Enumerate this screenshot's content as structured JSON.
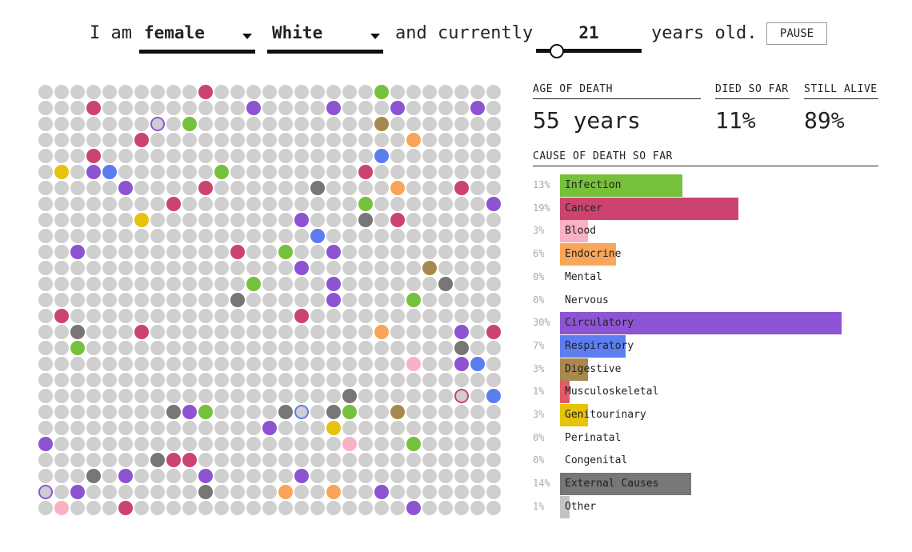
{
  "header": {
    "prefix": "I am",
    "sex_select": {
      "value": "female"
    },
    "race_select": {
      "value": "White"
    },
    "middle": "and currently",
    "age": {
      "value": "21",
      "slider_fraction": 0.2
    },
    "suffix": "years old.",
    "pause_label": "PAUSE"
  },
  "stats": {
    "age_of_death_label": "AGE OF DEATH",
    "age_of_death_value": "55 years",
    "died_label": "DIED SO FAR",
    "died_value": "11%",
    "alive_label": "STILL ALIVE",
    "alive_value": "89%"
  },
  "causes_title": "CAUSE OF DEATH SO FAR",
  "causes": [
    {
      "pct": "13%",
      "value": 13,
      "label": "Infection",
      "color": "#76c03c"
    },
    {
      "pct": "19%",
      "value": 19,
      "label": "Cancer",
      "color": "#cc4370"
    },
    {
      "pct": "3%",
      "value": 3,
      "label": "Blood",
      "color": "#f9b1c4"
    },
    {
      "pct": "6%",
      "value": 6,
      "label": "Endocrine",
      "color": "#f9a65a"
    },
    {
      "pct": "0%",
      "value": 0,
      "label": "Mental",
      "color": "#cccccc"
    },
    {
      "pct": "0%",
      "value": 0,
      "label": "Nervous",
      "color": "#cccccc"
    },
    {
      "pct": "30%",
      "value": 30,
      "label": "Circulatory",
      "color": "#8d55d4"
    },
    {
      "pct": "7%",
      "value": 7,
      "label": "Respiratory",
      "color": "#5c7ef0"
    },
    {
      "pct": "3%",
      "value": 3,
      "label": "Digestive",
      "color": "#a8884c"
    },
    {
      "pct": "1%",
      "value": 1,
      "label": "Musculoskeletal",
      "color": "#e05c6c"
    },
    {
      "pct": "3%",
      "value": 3,
      "label": "Genitourinary",
      "color": "#e6c40c"
    },
    {
      "pct": "0%",
      "value": 0,
      "label": "Perinatal",
      "color": "#cccccc"
    },
    {
      "pct": "0%",
      "value": 0,
      "label": "Congenital",
      "color": "#cccccc"
    },
    {
      "pct": "14%",
      "value": 14,
      "label": "External Causes",
      "color": "#777777"
    },
    {
      "pct": "1%",
      "value": 1,
      "label": "Other",
      "color": "#c4c4c4"
    }
  ],
  "grid": {
    "cols": 29,
    "rows": 27,
    "empty_color": "#cfcfcf",
    "palette": {
      "I": "#76c03c",
      "C": "#cc4370",
      "B": "#f9b1c4",
      "E": "#f9a65a",
      "R": "#8d55d4",
      "S": "#5c7ef0",
      "D": "#a8884c",
      "M": "#e05c6c",
      "G": "#e6c40c",
      "X": "#777777"
    },
    "colored": [
      [
        0,
        10,
        "C"
      ],
      [
        0,
        21,
        "I"
      ],
      [
        1,
        3,
        "C"
      ],
      [
        1,
        13,
        "R"
      ],
      [
        1,
        18,
        "R"
      ],
      [
        1,
        22,
        "R"
      ],
      [
        1,
        27,
        "R"
      ],
      [
        2,
        7,
        "R",
        "ring"
      ],
      [
        2,
        9,
        "I"
      ],
      [
        2,
        21,
        "D"
      ],
      [
        3,
        6,
        "C"
      ],
      [
        3,
        23,
        "E"
      ],
      [
        4,
        3,
        "C"
      ],
      [
        4,
        21,
        "S"
      ],
      [
        5,
        1,
        "G"
      ],
      [
        5,
        3,
        "R"
      ],
      [
        5,
        4,
        "S"
      ],
      [
        5,
        11,
        "I"
      ],
      [
        5,
        20,
        "C"
      ],
      [
        6,
        5,
        "R"
      ],
      [
        6,
        10,
        "C"
      ],
      [
        6,
        17,
        "X"
      ],
      [
        6,
        22,
        "E"
      ],
      [
        6,
        26,
        "C"
      ],
      [
        7,
        8,
        "C"
      ],
      [
        7,
        20,
        "I"
      ],
      [
        7,
        28,
        "R"
      ],
      [
        8,
        6,
        "G"
      ],
      [
        8,
        16,
        "R"
      ],
      [
        8,
        20,
        "X"
      ],
      [
        8,
        22,
        "C"
      ],
      [
        9,
        17,
        "S"
      ],
      [
        10,
        2,
        "R"
      ],
      [
        10,
        12,
        "C"
      ],
      [
        10,
        15,
        "I"
      ],
      [
        10,
        18,
        "R"
      ],
      [
        11,
        16,
        "R"
      ],
      [
        11,
        24,
        "D"
      ],
      [
        12,
        13,
        "I"
      ],
      [
        12,
        18,
        "R"
      ],
      [
        12,
        25,
        "X"
      ],
      [
        13,
        12,
        "X"
      ],
      [
        13,
        18,
        "R"
      ],
      [
        13,
        23,
        "I"
      ],
      [
        14,
        1,
        "C"
      ],
      [
        14,
        16,
        "C"
      ],
      [
        15,
        2,
        "X"
      ],
      [
        15,
        6,
        "C"
      ],
      [
        15,
        21,
        "E"
      ],
      [
        15,
        26,
        "R"
      ],
      [
        15,
        28,
        "C"
      ],
      [
        16,
        2,
        "I"
      ],
      [
        16,
        26,
        "X"
      ],
      [
        17,
        23,
        "B"
      ],
      [
        17,
        26,
        "R"
      ],
      [
        17,
        27,
        "S"
      ],
      [
        19,
        19,
        "X"
      ],
      [
        19,
        26,
        "C",
        "ring"
      ],
      [
        19,
        28,
        "S"
      ],
      [
        20,
        8,
        "X"
      ],
      [
        20,
        9,
        "R"
      ],
      [
        20,
        10,
        "I"
      ],
      [
        20,
        15,
        "X"
      ],
      [
        20,
        16,
        "S",
        "ring"
      ],
      [
        20,
        18,
        "X"
      ],
      [
        20,
        19,
        "I"
      ],
      [
        20,
        22,
        "D"
      ],
      [
        21,
        14,
        "R"
      ],
      [
        21,
        18,
        "G"
      ],
      [
        22,
        0,
        "R"
      ],
      [
        22,
        19,
        "B"
      ],
      [
        22,
        23,
        "I"
      ],
      [
        23,
        7,
        "X"
      ],
      [
        23,
        8,
        "C"
      ],
      [
        23,
        9,
        "C"
      ],
      [
        24,
        3,
        "X"
      ],
      [
        24,
        5,
        "R"
      ],
      [
        24,
        10,
        "R"
      ],
      [
        24,
        16,
        "R"
      ],
      [
        25,
        0,
        "R",
        "ring"
      ],
      [
        25,
        2,
        "R"
      ],
      [
        25,
        10,
        "X"
      ],
      [
        25,
        15,
        "E"
      ],
      [
        25,
        18,
        "E"
      ],
      [
        25,
        21,
        "R"
      ],
      [
        26,
        1,
        "B"
      ],
      [
        26,
        5,
        "C"
      ],
      [
        26,
        23,
        "R"
      ]
    ]
  }
}
